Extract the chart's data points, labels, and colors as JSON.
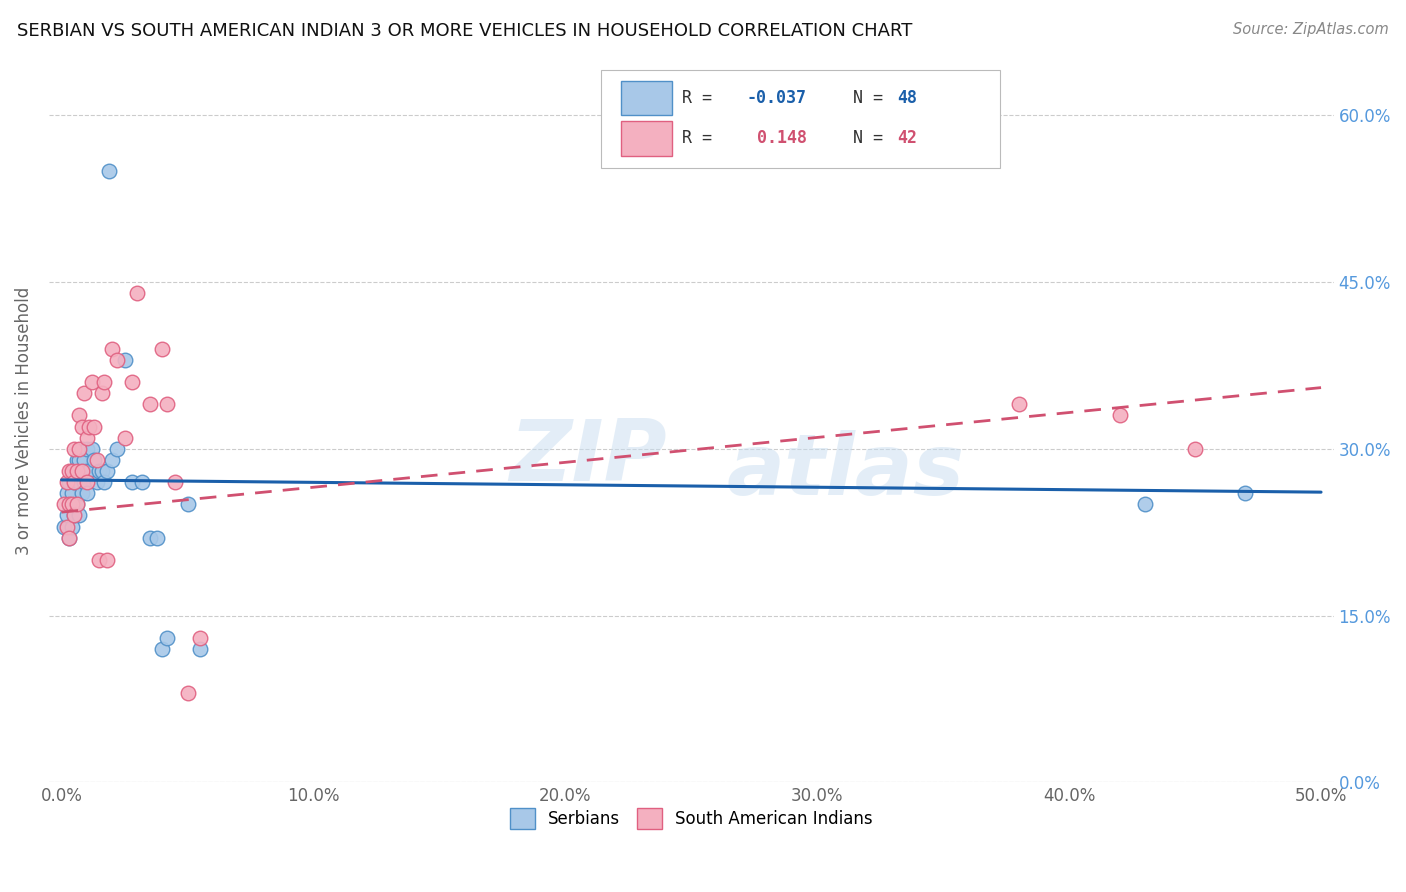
{
  "title": "SERBIAN VS SOUTH AMERICAN INDIAN 3 OR MORE VEHICLES IN HOUSEHOLD CORRELATION CHART",
  "source": "Source: ZipAtlas.com",
  "xlim": [
    -0.005,
    0.505
  ],
  "ylim": [
    0.0,
    0.65
  ],
  "x_ticks": [
    0.0,
    0.1,
    0.2,
    0.3,
    0.4,
    0.5
  ],
  "y_ticks": [
    0.0,
    0.15,
    0.3,
    0.45,
    0.6
  ],
  "watermark": "ZIPatlas",
  "serbian_color": "#a8c8e8",
  "south_american_color": "#f4b0c0",
  "serbian_edge_color": "#5090c8",
  "south_american_edge_color": "#e06080",
  "serbian_line_color": "#1a5faa",
  "south_american_line_color": "#d05070",
  "legend_text1": "R = -0.037   N = 48",
  "legend_text2": "R =   0.148   N = 42",
  "serbian_scatter_x": [
    0.001,
    0.002,
    0.002,
    0.003,
    0.003,
    0.003,
    0.004,
    0.004,
    0.004,
    0.005,
    0.005,
    0.005,
    0.006,
    0.006,
    0.006,
    0.007,
    0.007,
    0.007,
    0.008,
    0.008,
    0.008,
    0.009,
    0.009,
    0.01,
    0.01,
    0.01,
    0.011,
    0.012,
    0.013,
    0.014,
    0.015,
    0.016,
    0.017,
    0.018,
    0.019,
    0.02,
    0.022,
    0.025,
    0.028,
    0.032,
    0.035,
    0.038,
    0.04,
    0.042,
    0.05,
    0.055,
    0.43,
    0.47
  ],
  "serbian_scatter_y": [
    0.23,
    0.24,
    0.26,
    0.22,
    0.25,
    0.27,
    0.23,
    0.26,
    0.28,
    0.24,
    0.27,
    0.28,
    0.25,
    0.27,
    0.29,
    0.24,
    0.27,
    0.29,
    0.26,
    0.28,
    0.3,
    0.27,
    0.29,
    0.26,
    0.28,
    0.3,
    0.28,
    0.3,
    0.29,
    0.27,
    0.28,
    0.28,
    0.27,
    0.28,
    0.55,
    0.29,
    0.3,
    0.38,
    0.27,
    0.27,
    0.22,
    0.22,
    0.12,
    0.13,
    0.25,
    0.12,
    0.25,
    0.26
  ],
  "south_american_scatter_x": [
    0.001,
    0.002,
    0.002,
    0.003,
    0.003,
    0.003,
    0.004,
    0.004,
    0.005,
    0.005,
    0.005,
    0.006,
    0.006,
    0.007,
    0.007,
    0.008,
    0.008,
    0.009,
    0.01,
    0.01,
    0.011,
    0.012,
    0.013,
    0.014,
    0.015,
    0.016,
    0.017,
    0.018,
    0.02,
    0.022,
    0.025,
    0.028,
    0.03,
    0.035,
    0.04,
    0.042,
    0.045,
    0.05,
    0.055,
    0.38,
    0.42,
    0.45
  ],
  "south_american_scatter_y": [
    0.25,
    0.23,
    0.27,
    0.22,
    0.25,
    0.28,
    0.25,
    0.28,
    0.24,
    0.27,
    0.3,
    0.25,
    0.28,
    0.3,
    0.33,
    0.28,
    0.32,
    0.35,
    0.27,
    0.31,
    0.32,
    0.36,
    0.32,
    0.29,
    0.2,
    0.35,
    0.36,
    0.2,
    0.39,
    0.38,
    0.31,
    0.36,
    0.44,
    0.34,
    0.39,
    0.34,
    0.27,
    0.08,
    0.13,
    0.34,
    0.33,
    0.3
  ],
  "serbian_line_y_at_0": 0.272,
  "serbian_line_y_at_50": 0.261,
  "sa_line_y_at_0": 0.243,
  "sa_line_y_at_50": 0.355
}
